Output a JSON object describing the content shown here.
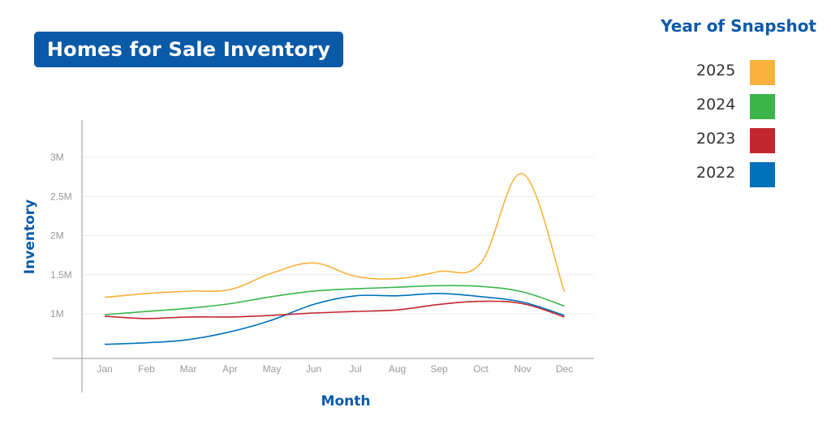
{
  "header": {
    "title": "Homes for Sale Inventory"
  },
  "legend": {
    "title": "Year of Snapshot",
    "items": [
      {
        "label": "2025",
        "color": "#f9b13c"
      },
      {
        "label": "2024",
        "color": "#3ab54a"
      },
      {
        "label": "2023",
        "color": "#c1272d"
      },
      {
        "label": "2022",
        "color": "#0071bc"
      }
    ]
  },
  "chart_data": {
    "type": "line",
    "title": "Homes for Sale Inventory",
    "xlabel": "Month",
    "ylabel": "Inventory",
    "categories": [
      "Jan",
      "Feb",
      "Mar",
      "Apr",
      "May",
      "Jun",
      "Jul",
      "Aug",
      "Sep",
      "Oct",
      "Nov",
      "Dec"
    ],
    "yticks": [
      {
        "value": 1000000,
        "label": "1M"
      },
      {
        "value": 1500000,
        "label": "1.5M"
      },
      {
        "value": 2000000,
        "label": "2M"
      },
      {
        "value": 2500000,
        "label": "2.5M"
      },
      {
        "value": 3000000,
        "label": "3M"
      }
    ],
    "ylim": [
      450000,
      3500000
    ],
    "grid": true,
    "legend_position": "top-right",
    "series": [
      {
        "name": "2025",
        "color": "#f9b13c",
        "values": [
          1210000,
          1260000,
          1290000,
          1310000,
          1520000,
          1650000,
          1480000,
          1450000,
          1540000,
          1650000,
          2790000,
          1280000
        ]
      },
      {
        "name": "2024",
        "color": "#3ab54a",
        "values": [
          990000,
          1030000,
          1070000,
          1130000,
          1220000,
          1290000,
          1320000,
          1340000,
          1360000,
          1350000,
          1280000,
          1100000
        ]
      },
      {
        "name": "2023",
        "color": "#c1272d",
        "values": [
          970000,
          940000,
          960000,
          960000,
          980000,
          1010000,
          1030000,
          1050000,
          1120000,
          1160000,
          1130000,
          960000
        ]
      },
      {
        "name": "2022",
        "color": "#0071bc",
        "values": [
          610000,
          630000,
          670000,
          770000,
          920000,
          1120000,
          1230000,
          1230000,
          1260000,
          1220000,
          1150000,
          980000
        ]
      }
    ]
  }
}
